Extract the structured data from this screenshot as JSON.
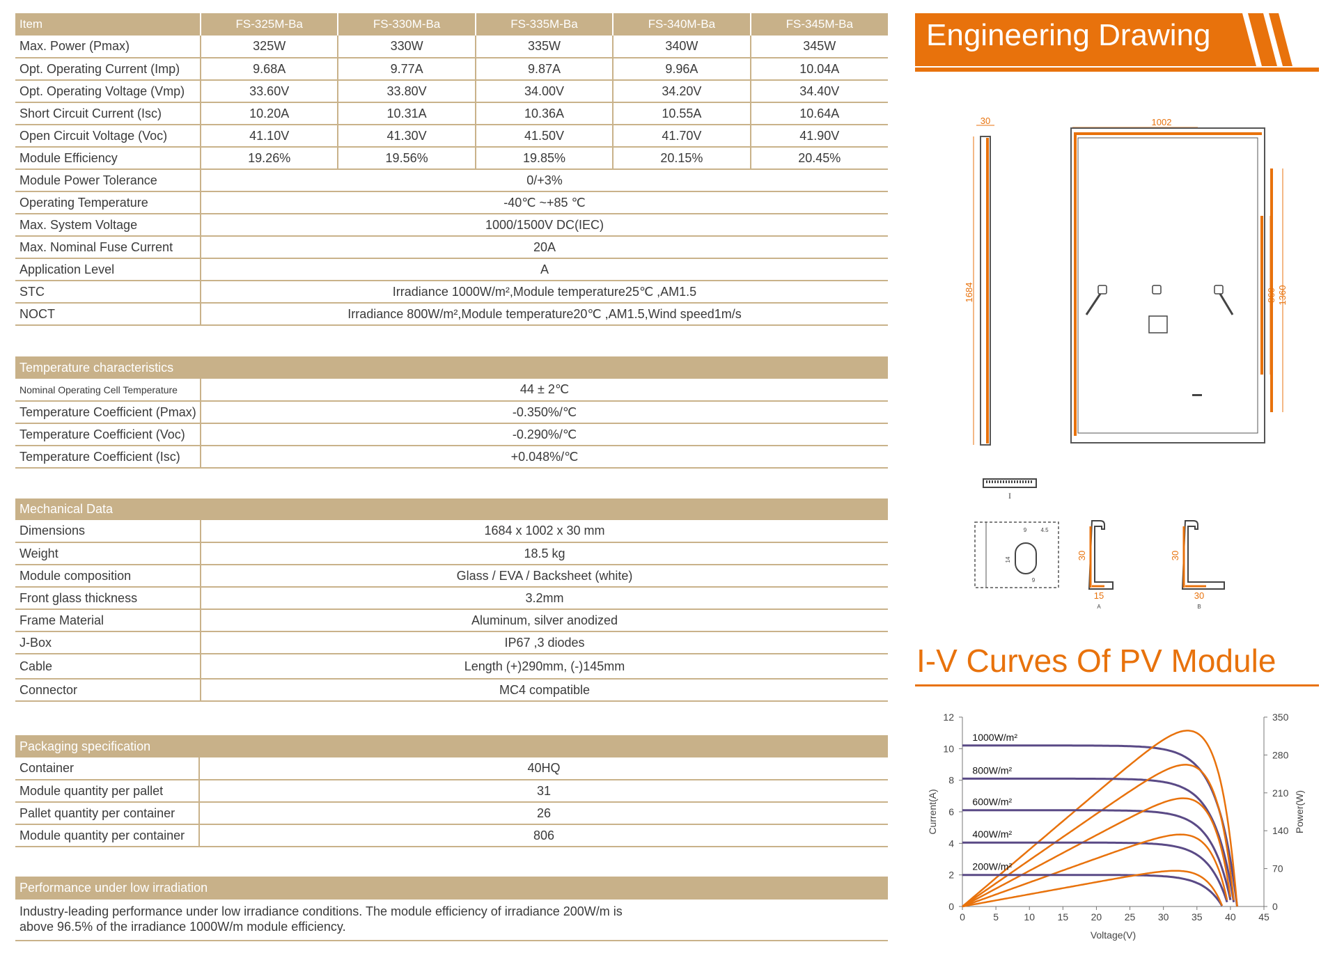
{
  "spec_table": {
    "header": [
      "Item",
      "FS-325M-Ba",
      "FS-330M-Ba",
      "FS-335M-Ba",
      "FS-340M-Ba",
      "FS-345M-Ba"
    ],
    "rows": [
      {
        "label": "Max. Power (Pmax)",
        "values": [
          "325W",
          "330W",
          "335W",
          "340W",
          "345W"
        ]
      },
      {
        "label": "Opt. Operating Current (Imp)",
        "values": [
          "9.68A",
          "9.77A",
          "9.87A",
          "9.96A",
          "10.04A"
        ]
      },
      {
        "label": "Opt. Operating Voltage (Vmp)",
        "values": [
          "33.60V",
          "33.80V",
          "34.00V",
          "34.20V",
          "34.40V"
        ]
      },
      {
        "label": "Short Circuit Current (Isc)",
        "values": [
          "10.20A",
          "10.31A",
          "10.36A",
          "10.55A",
          "10.64A"
        ]
      },
      {
        "label": "Open Circuit Voltage (Voc)",
        "values": [
          "41.10V",
          "41.30V",
          "41.50V",
          "41.70V",
          "41.90V"
        ]
      },
      {
        "label": "Module Efficiency",
        "values": [
          "19.26%",
          "19.56%",
          "19.85%",
          "20.15%",
          "20.45%"
        ]
      }
    ],
    "merged_rows": [
      {
        "label": "Module Power Tolerance",
        "value": "0/+3%"
      },
      {
        "label": "Operating Temperature",
        "value": "-40℃ ~+85 ℃"
      },
      {
        "label": "Max. System Voltage",
        "value": "1000/1500V DC(IEC)"
      },
      {
        "label": "Max. Nominal Fuse Current",
        "value": "20A"
      },
      {
        "label": "Application Level",
        "value": "A"
      },
      {
        "label": "STC",
        "value": "Irradiance 1000W/m²,Module temperature25℃ ,AM1.5"
      },
      {
        "label": "NOCT",
        "value": "Irradiance 800W/m²,Module temperature20℃ ,AM1.5,Wind speed1m/s"
      }
    ]
  },
  "temperature": {
    "title": "Temperature characteristics",
    "rows": [
      {
        "label": "Nominal Operating Cell Temperature",
        "value": "44 ± 2℃"
      },
      {
        "label": "Temperature Coefficient (Pmax)",
        "value": "-0.350%/℃"
      },
      {
        "label": "Temperature Coefficient (Voc)",
        "value": "-0.290%/℃"
      },
      {
        "label": "Temperature Coefficient (Isc)",
        "value": "+0.048%/℃"
      }
    ]
  },
  "mechanical": {
    "title": "Mechanical Data",
    "rows": [
      {
        "label": "Dimensions",
        "value": "1684 x 1002 x 30 mm"
      },
      {
        "label": "Weight",
        "value": "18.5 kg"
      },
      {
        "label": "Module composition",
        "value": "Glass / EVA / Backsheet (white)"
      },
      {
        "label": "Front glass thickness",
        "value": "3.2mm"
      },
      {
        "label": "Frame Material",
        "value": "Aluminum, silver anodized"
      },
      {
        "label": "J-Box",
        "value": "IP67 ,3 diodes"
      },
      {
        "label": "Cable",
        "value": "Length (+)290mm, (-)145mm"
      },
      {
        "label": "Connector",
        "value": "MC4 compatible"
      }
    ]
  },
  "packaging": {
    "title": "Packaging specification",
    "rows": [
      {
        "label": "Container",
        "value": "40HQ"
      },
      {
        "label": "Module quantity per pallet",
        "value": "31"
      },
      {
        "label": "Pallet quantity per container",
        "value": "26"
      },
      {
        "label": "Module quantity per container",
        "value": "806"
      }
    ]
  },
  "performance": {
    "title": "Performance under low irradiation",
    "text_line1": "Industry-leading performance under low irradiance conditions. The module efficiency of irradiance 200W/m is",
    "text_line2": "above 96.5% of the irradiance 1000W/m module efficiency."
  },
  "engineering": {
    "title": "Engineering Drawing",
    "dim_side_width": "30",
    "dim_width": "1002",
    "dim_height": "1684",
    "dim_860": "860",
    "dim_1360": "1360",
    "section_I": "I",
    "detail_9": "9",
    "detail_4_5": "4.5",
    "detail_14": "14",
    "detail_9b": "9",
    "profile_a_height": "30",
    "profile_a_width": "15",
    "profile_a_label": "A",
    "profile_b_height": "30",
    "profile_b_width": "30",
    "profile_b_label": "B",
    "accent_color": "#e8720c"
  },
  "iv_title": "I-V Curves Of PV Module",
  "chart_data": {
    "type": "line",
    "xlabel": "Voltage(V)",
    "ylabel": "Current(A)",
    "y2label": "Power(W)",
    "xlim": [
      0,
      45
    ],
    "ylim": [
      0,
      12
    ],
    "y2lim": [
      0,
      350
    ],
    "xticks": [
      0,
      5,
      10,
      15,
      20,
      25,
      30,
      35,
      40,
      45
    ],
    "yticks": [
      0,
      2,
      4,
      6,
      8,
      10,
      12
    ],
    "y2ticks": [
      0,
      70,
      140,
      210,
      280,
      350
    ],
    "current_color": "#5a4a86",
    "power_color": "#e8720c",
    "series": [
      {
        "name": "1000W/m²",
        "isc": 10.2,
        "voc": 41.0,
        "pmax": 325,
        "vmp": 34.5
      },
      {
        "name": "800W/m²",
        "isc": 8.1,
        "voc": 40.6,
        "pmax": 262,
        "vmp": 34.5
      },
      {
        "name": "600W/m²",
        "isc": 6.1,
        "voc": 40.2,
        "pmax": 200,
        "vmp": 34.3
      },
      {
        "name": "400W/m²",
        "isc": 4.05,
        "voc": 39.7,
        "pmax": 133,
        "vmp": 34.0
      },
      {
        "name": "200W/m²",
        "isc": 2.0,
        "voc": 38.8,
        "pmax": 66,
        "vmp": 33.5
      }
    ]
  }
}
